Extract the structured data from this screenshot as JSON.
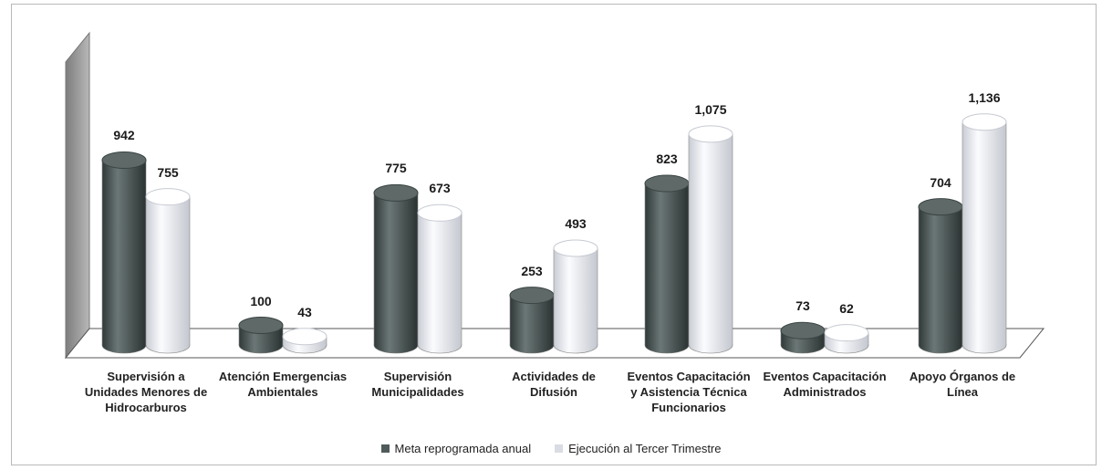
{
  "chart_data": {
    "type": "bar",
    "categories": [
      "Supervisión a Unidades Menores de Hidrocarburos",
      "Atención Emergencias Ambientales",
      "Supervisión Municipalidades",
      "Actividades de Difusión",
      "Eventos Capacitación y Asistencia Técnica Funcionarios",
      "Eventos Capacitación Administrados",
      "Apoyo Órganos de Línea"
    ],
    "category_lines": [
      [
        "Supervisión a",
        "Unidades Menores de",
        "Hidrocarburos"
      ],
      [
        "Atención Emergencias",
        "Ambientales"
      ],
      [
        "Supervisión",
        "Municipalidades"
      ],
      [
        "Actividades de",
        "Difusión"
      ],
      [
        "Eventos Capacitación",
        "y Asistencia Técnica",
        "Funcionarios"
      ],
      [
        "Eventos Capacitación",
        "Administrados"
      ],
      [
        "Apoyo Órganos de",
        "Línea"
      ]
    ],
    "series": [
      {
        "name": "Meta reprogramada anual",
        "color": "#4f5b5a",
        "values": [
          942,
          100,
          775,
          253,
          823,
          73,
          704
        ],
        "value_labels": [
          "942",
          "100",
          "775",
          "253",
          "823",
          "73",
          "704"
        ]
      },
      {
        "name": "Ejecución al Tercer Trimestre",
        "color": "#eef0f4",
        "values": [
          755,
          43,
          673,
          493,
          1075,
          62,
          1136
        ],
        "value_labels": [
          "755",
          "43",
          "673",
          "493",
          "1,075",
          "62",
          "1,136"
        ]
      }
    ],
    "ylim": [
      0,
      1200
    ],
    "grid": false,
    "legend_position": "bottom",
    "style": "3d-cylinder"
  }
}
